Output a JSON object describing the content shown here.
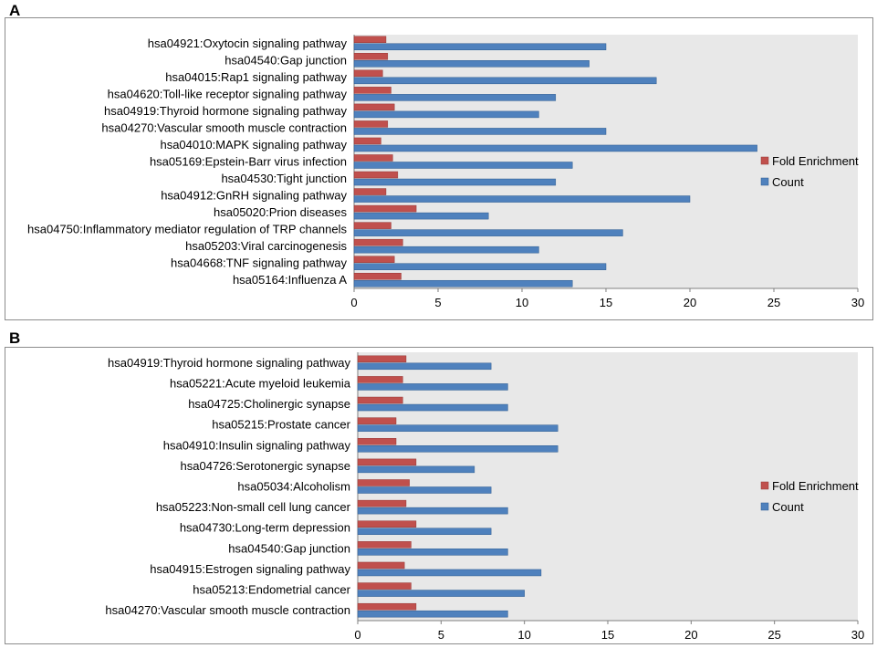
{
  "panels": [
    {
      "letter": "A"
    },
    {
      "letter": "B"
    }
  ],
  "colors": {
    "fold": "#c0504d",
    "count": "#4f81bd",
    "plot_bg": "#e8e8e8"
  },
  "chart_data": [
    {
      "type": "bar",
      "orientation": "horizontal",
      "panel": "A",
      "categories": [
        "hsa04921:Oxytocin signaling pathway",
        "hsa04540:Gap junction",
        "hsa04015:Rap1 signaling pathway",
        "hsa04620:Toll-like receptor signaling pathway",
        "hsa04919:Thyroid hormone signaling pathway",
        "hsa04270:Vascular smooth muscle contraction",
        "hsa04010:MAPK signaling pathway",
        "hsa05169:Epstein-Barr virus infection",
        "hsa04530:Tight junction",
        "hsa04912:GnRH signaling pathway",
        "hsa05020:Prion diseases",
        "hsa04750:Inflammatory mediator regulation of TRP channels",
        "hsa05203:Viral carcinogenesis",
        "hsa04668:TNF signaling pathway",
        "hsa05164:Influenza A"
      ],
      "series": [
        {
          "name": "Fold Enrichment",
          "values": [
            1.9,
            2.0,
            1.7,
            2.2,
            2.4,
            2.0,
            1.6,
            2.3,
            2.6,
            1.9,
            3.7,
            2.2,
            2.9,
            2.4,
            2.8
          ]
        },
        {
          "name": "Count",
          "values": [
            15,
            14,
            18,
            12,
            11,
            15,
            24,
            13,
            12,
            20,
            8,
            16,
            11,
            15,
            13
          ]
        }
      ],
      "xlim": [
        0,
        30
      ],
      "xticks": [
        "0",
        "5",
        "10",
        "15",
        "20",
        "25",
        "30"
      ],
      "legend": [
        "Fold Enrichment",
        "Count"
      ],
      "legend_position": "right"
    },
    {
      "type": "bar",
      "orientation": "horizontal",
      "panel": "B",
      "categories": [
        "hsa04919:Thyroid hormone signaling pathway",
        "hsa05221:Acute myeloid leukemia",
        "hsa04725:Cholinergic synapse",
        "hsa05215:Prostate cancer",
        "hsa04910:Insulin signaling pathway",
        "hsa04726:Serotonergic synapse",
        "hsa05034:Alcoholism",
        "hsa05223:Non-small cell lung cancer",
        "hsa04730:Long-term depression",
        "hsa04540:Gap junction",
        "hsa04915:Estrogen signaling pathway",
        "hsa05213:Endometrial cancer",
        "hsa04270:Vascular smooth muscle contraction"
      ],
      "series": [
        {
          "name": "Fold Enrichment",
          "values": [
            2.9,
            2.7,
            2.7,
            2.3,
            2.3,
            3.5,
            3.1,
            2.9,
            3.5,
            3.2,
            2.8,
            3.2,
            3.5
          ]
        },
        {
          "name": "Count",
          "values": [
            8,
            9,
            9,
            12,
            12,
            7,
            8,
            9,
            8,
            9,
            11,
            10,
            9
          ]
        }
      ],
      "xlim": [
        0,
        30
      ],
      "xticks": [
        "0",
        "5",
        "10",
        "15",
        "20",
        "25",
        "30"
      ],
      "legend": [
        "Fold Enrichment",
        "Count"
      ],
      "legend_position": "right"
    }
  ]
}
